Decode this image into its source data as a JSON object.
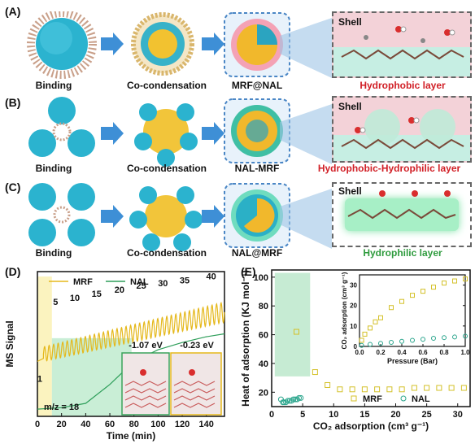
{
  "rows": [
    {
      "letter": "(A)",
      "binding": "Binding",
      "cocond": "Co-condensation",
      "product": "MRF@NAL",
      "shell": "Shell",
      "layer": "Hydrophobic layer"
    },
    {
      "letter": "(B)",
      "binding": "Binding",
      "cocond": "Co-condensation",
      "product": "NAL-MRF",
      "shell": "Shell",
      "layer_a": "Hydrophobic-",
      "layer_b": "Hydrophilic layer"
    },
    {
      "letter": "(C)",
      "binding": "Binding",
      "cocond": "Co-condensation",
      "product": "NAL@MRF",
      "shell": "Shell",
      "layer": "Hydrophilic layer"
    }
  ],
  "panelD": {
    "letter": "(D)",
    "legend": [
      "MRF",
      "NAL"
    ],
    "ylabel": "MS Signal",
    "xlabel": "Time (min)",
    "xticks": [
      "0",
      "20",
      "40",
      "60",
      "80",
      "100",
      "120",
      "140"
    ],
    "peak_labels": [
      "1",
      "5",
      "10",
      "15",
      "20",
      "25",
      "30",
      "35",
      "40"
    ],
    "mz": "m/z = 18",
    "energy1": "-1.07 eV",
    "energy2": "-0.23 eV"
  },
  "panelE": {
    "letter": "(E)",
    "ylabel": "Heat of adsorption (KJ mol⁻¹)",
    "xlabel": "CO₂ adsorption (cm³ g⁻¹)",
    "xticks": [
      "0",
      "5",
      "10",
      "15",
      "20",
      "25",
      "30"
    ],
    "yticks": [
      "20",
      "40",
      "60",
      "80",
      "100"
    ],
    "legend": [
      "MRF",
      "NAL"
    ],
    "inset": {
      "xlabel": "Pressure (Bar)",
      "ylabel": "CO₂ adsorption (cm³ g⁻¹)",
      "xticks": [
        "0.0",
        "0.2",
        "0.4",
        "0.6",
        "0.8",
        "1.0"
      ],
      "yticks": [
        "0",
        "10",
        "20",
        "30"
      ]
    }
  },
  "chart_data": [
    {
      "type": "line",
      "xlabel": "Time (min)",
      "ylabel": "MS Signal",
      "xlim": [
        0,
        155
      ],
      "series": [
        {
          "name": "MRF",
          "note": "oscillating signal, 40 cycles rising from ~0.35 to ~0.75 (relative)"
        },
        {
          "name": "NAL",
          "x": [
            0,
            20,
            40,
            60,
            80,
            100,
            120,
            140,
            155
          ],
          "y": [
            0.05,
            0.06,
            0.09,
            0.22,
            0.38,
            0.46,
            0.51,
            0.55,
            0.57
          ]
        }
      ]
    },
    {
      "type": "scatter",
      "xlabel": "CO₂ adsorption (cm³ g⁻¹)",
      "ylabel": "Heat of adsorption (KJ mol⁻¹)",
      "xlim": [
        0,
        32
      ],
      "ylim": [
        10,
        105
      ],
      "series": [
        {
          "name": "MRF",
          "x": [
            4,
            7,
            9,
            11,
            13,
            15,
            17,
            19,
            21,
            23,
            25,
            27,
            29,
            31
          ],
          "y": [
            62,
            34,
            25,
            22,
            22,
            22,
            22,
            22,
            22,
            23,
            23,
            23,
            23,
            23
          ]
        },
        {
          "name": "NAL",
          "x": [
            1.5,
            1.8,
            2.0,
            2.3,
            2.6,
            2.9,
            3.2,
            3.5,
            3.8,
            4.1,
            4.4,
            4.7
          ],
          "y": [
            15,
            13,
            13,
            13,
            14,
            14,
            14,
            15,
            15,
            15,
            16,
            16
          ]
        }
      ]
    },
    {
      "type": "scatter",
      "xlabel": "Pressure (Bar)",
      "ylabel": "CO₂ adsorption (cm³ g⁻¹)",
      "xlim": [
        0,
        1
      ],
      "ylim": [
        0,
        35
      ],
      "series": [
        {
          "name": "MRF",
          "x": [
            0.02,
            0.05,
            0.1,
            0.15,
            0.2,
            0.3,
            0.4,
            0.5,
            0.6,
            0.7,
            0.8,
            0.9,
            1.0
          ],
          "y": [
            3,
            6,
            9,
            12,
            14,
            19,
            22,
            25,
            27,
            29,
            31,
            32,
            33
          ]
        },
        {
          "name": "NAL",
          "x": [
            0.02,
            0.1,
            0.2,
            0.3,
            0.4,
            0.5,
            0.6,
            0.7,
            0.8,
            0.9,
            1.0
          ],
          "y": [
            0.5,
            1,
            1.5,
            2,
            2.5,
            3,
            3.5,
            4,
            4.3,
            4.6,
            5
          ]
        }
      ]
    }
  ]
}
